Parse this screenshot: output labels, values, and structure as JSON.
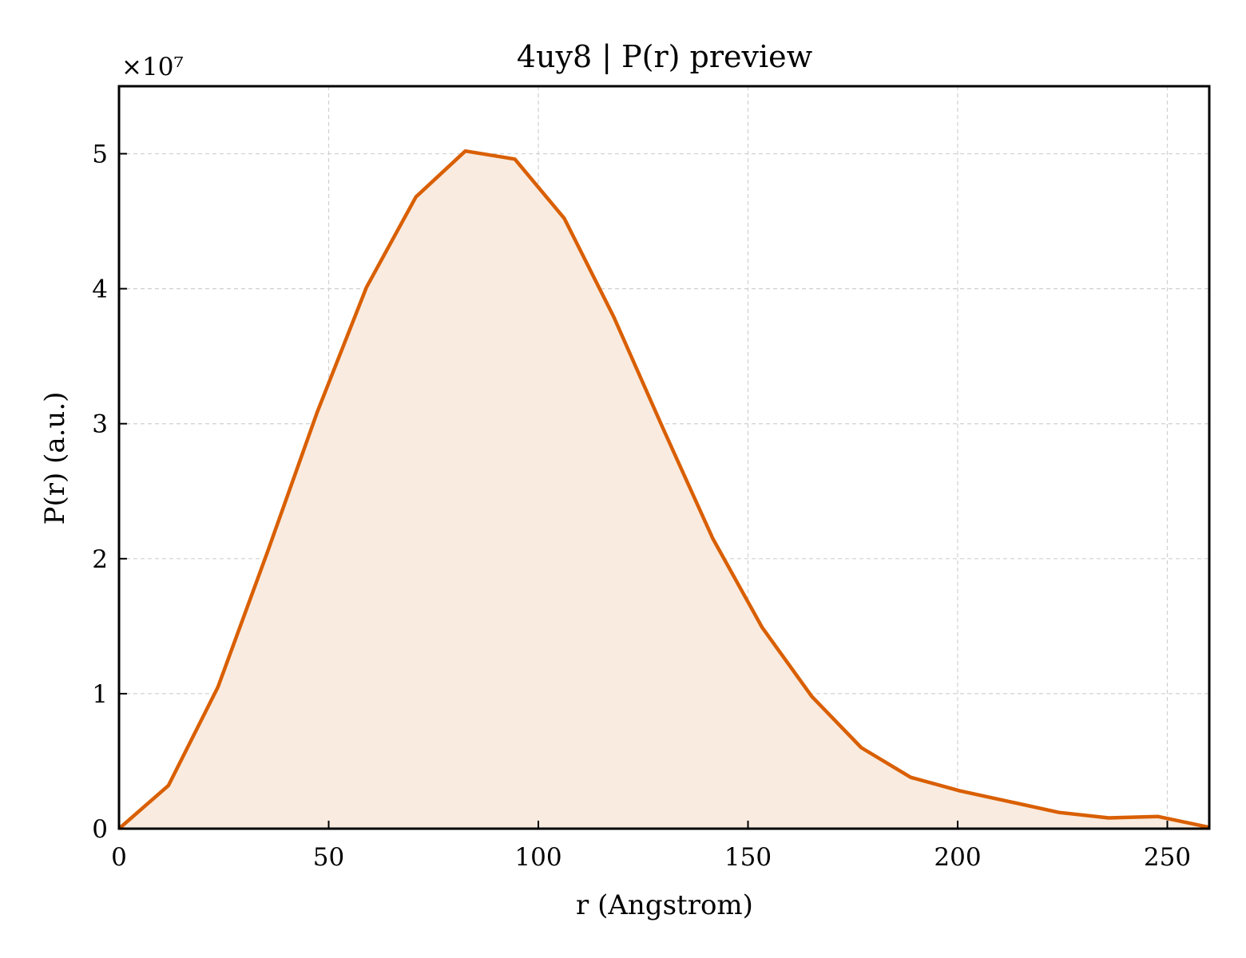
{
  "colors": {
    "line": "#d95f02",
    "fill": "#f9ebe0",
    "grid": "#d0d0d0",
    "axes": "#000000"
  },
  "chart_data": {
    "type": "area",
    "title": "4uy8 | P(r) preview",
    "xlabel": "r (Angstrom)",
    "ylabel": "P(r) (a.u.)",
    "y_multiplier_label": "×10⁷",
    "xlim": [
      0,
      260
    ],
    "ylim": [
      0,
      5.5
    ],
    "x_ticks": [
      0,
      50,
      100,
      150,
      200,
      250
    ],
    "y_ticks": [
      0,
      1,
      2,
      3,
      4,
      5
    ],
    "grid": true,
    "series": [
      {
        "x": [
          0,
          11.8,
          23.6,
          35.4,
          47.2,
          59.0,
          70.8,
          82.6,
          94.4,
          106.2,
          118.0,
          129.8,
          141.6,
          153.4,
          165.2,
          177.0,
          188.8,
          200.6,
          212.4,
          224.2,
          236.0,
          247.8,
          260.0
        ],
        "y": [
          0,
          0.32,
          1.05,
          2.05,
          3.08,
          4.01,
          4.68,
          5.02,
          4.96,
          4.52,
          3.79,
          2.96,
          2.15,
          1.49,
          0.98,
          0.6,
          0.38,
          0.28,
          0.2,
          0.12,
          0.08,
          0.09,
          0.01
        ]
      }
    ]
  }
}
